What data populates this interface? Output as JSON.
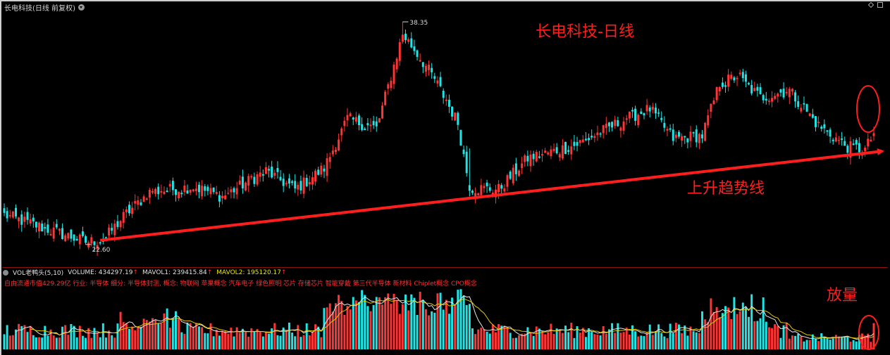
{
  "window": {
    "title": "长电科技(日线 前复权)"
  },
  "volume_panel": {
    "indicator": "VOL老鸭头(5,10)",
    "volume_label": "VOLUME: 434297.19",
    "mavol1_label": "MAVOL1: 239415.84",
    "mavol2_label": "MAVOL2: 195120.17",
    "up_arrow": "↑",
    "info": "自由流通市值429.29亿 行业: 半导体 细分: 半导体封测, 概念: 物联网 苹果概念 汽车电子 绿色照明 芯片 存储芯片 智能穿戴 第三代半导体 新材料 Chiplet概念 CPO概念"
  },
  "annotations": {
    "chart_title": "长电科技-日线",
    "trend_label": "上升趋势线",
    "volume_label": "放量",
    "high_label": "38.35",
    "low_label": "22.60"
  },
  "colors": {
    "up": "#ff3434",
    "down": "#1ee6e6",
    "trendline": "#ff1e1e",
    "ma1": "#e6e6e6",
    "ma2": "#e6c800"
  },
  "chart_data": [
    {
      "type": "candlestick",
      "title": "长电科技-日线",
      "ylim": [
        21.5,
        39
      ],
      "marked_high": 38.35,
      "marked_low": 22.6,
      "trendline": {
        "label": "上升趋势线",
        "from": {
          "index": 33,
          "value": 22.9
        },
        "to": {
          "index": 299,
          "value": 29.2
        }
      },
      "key_points": [
        {
          "index": 0,
          "close": 24.7
        },
        {
          "index": 25,
          "close": 23.0
        },
        {
          "index": 28,
          "close": 22.8
        },
        {
          "index": 34,
          "close": 22.9
        },
        {
          "index": 42,
          "close": 24.8
        },
        {
          "index": 50,
          "close": 26.3
        },
        {
          "index": 65,
          "close": 26.7
        },
        {
          "index": 75,
          "close": 26.0
        },
        {
          "index": 90,
          "close": 27.8
        },
        {
          "index": 100,
          "close": 26.5
        },
        {
          "index": 110,
          "close": 28.0
        },
        {
          "index": 118,
          "close": 31.5
        },
        {
          "index": 128,
          "close": 30.8
        },
        {
          "index": 137,
          "close": 37.5
        },
        {
          "index": 141,
          "close": 36.4
        },
        {
          "index": 148,
          "close": 34.3
        },
        {
          "index": 156,
          "close": 31.2
        },
        {
          "index": 160,
          "close": 26.6
        },
        {
          "index": 170,
          "close": 26.5
        },
        {
          "index": 180,
          "close": 28.7
        },
        {
          "index": 196,
          "close": 29.6
        },
        {
          "index": 215,
          "close": 31.6
        },
        {
          "index": 222,
          "close": 32.2
        },
        {
          "index": 230,
          "close": 30.1
        },
        {
          "index": 240,
          "close": 30.3
        },
        {
          "index": 246,
          "close": 34.0
        },
        {
          "index": 252,
          "close": 34.5
        },
        {
          "index": 260,
          "close": 33.0
        },
        {
          "index": 270,
          "close": 33.5
        },
        {
          "index": 280,
          "close": 31.0
        },
        {
          "index": 290,
          "close": 29.5
        },
        {
          "index": 296,
          "close": 29.3
        },
        {
          "index": 299,
          "close": 30.5
        }
      ]
    },
    {
      "type": "bar",
      "title": "VOL老鸭头(5,10)",
      "volume": 434297.19,
      "mavol1": 239415.84,
      "mavol2": 195120.17,
      "annotation": "放量"
    }
  ]
}
